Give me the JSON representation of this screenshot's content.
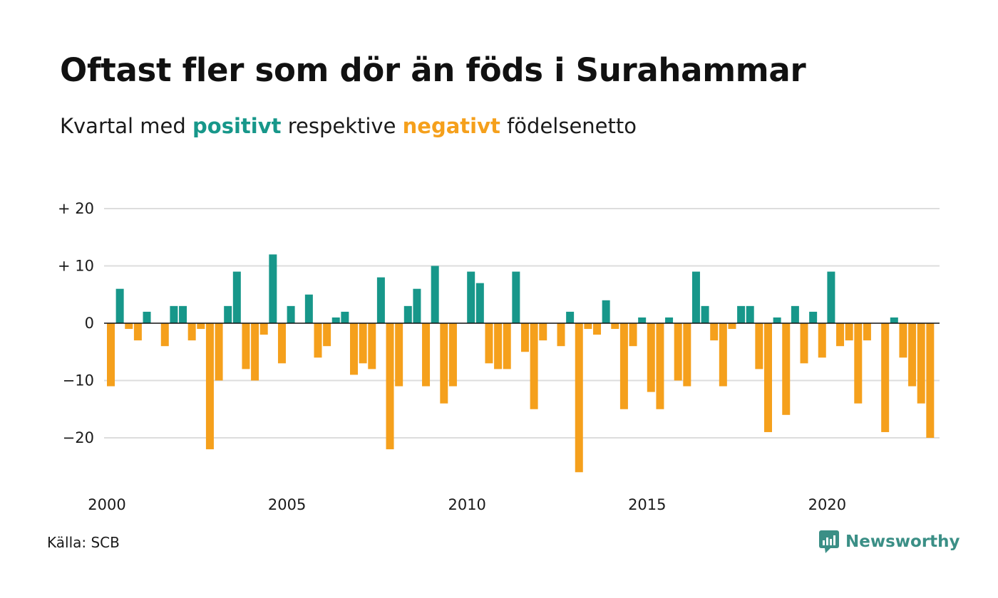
{
  "title": "Oftast fler som dör än föds i Surahammar",
  "subtitle": {
    "prefix": "Kvartal med ",
    "positive_word": "positivt",
    "middle": " respektive ",
    "negative_word": "negativt",
    "suffix": " födelsenetto"
  },
  "colors": {
    "positive": "#17978a",
    "negative": "#f5a01c",
    "grid": "#dddddd",
    "zero": "#111111"
  },
  "source": "Källa: SCB",
  "brand": {
    "name": "Newsworthy",
    "icon": "newsworthy-logo-icon"
  },
  "chart_data": {
    "type": "bar",
    "x_start": "2000 Q1",
    "x_tick_labels": [
      "2000",
      "2005",
      "2010",
      "2015",
      "2020"
    ],
    "y_tick_values": [
      20,
      10,
      0,
      -10,
      -20
    ],
    "y_tick_labels": [
      "+ 20",
      "+ 10",
      "0",
      "−10",
      "−20"
    ],
    "ylim": [
      -28,
      20
    ],
    "grid": true,
    "series": [
      {
        "values": [
          -11,
          6,
          -1,
          -3,
          2,
          0,
          -4,
          3,
          3,
          -3,
          -1,
          -22,
          -10,
          3,
          9,
          -8,
          -10,
          -2,
          12,
          -7,
          3,
          0,
          5,
          -6,
          -4,
          1,
          2,
          -9,
          -7,
          -8,
          8,
          -22,
          -11,
          3,
          6,
          -11,
          10,
          -14,
          -11,
          0,
          9,
          7,
          -7,
          -8,
          -8,
          9,
          -5,
          -15,
          -3,
          0,
          -4,
          2,
          -26,
          -1,
          -2,
          4,
          -1,
          -15,
          -4,
          1,
          -12,
          -15,
          1,
          -10,
          -11,
          9,
          3,
          -3,
          -11,
          -1,
          3,
          3,
          -8,
          -19,
          1,
          -16,
          3,
          -7,
          2,
          -6,
          9,
          -4,
          -3,
          -14,
          -3,
          0,
          -19,
          1,
          -6,
          -11,
          -14,
          -20
        ]
      }
    ]
  }
}
